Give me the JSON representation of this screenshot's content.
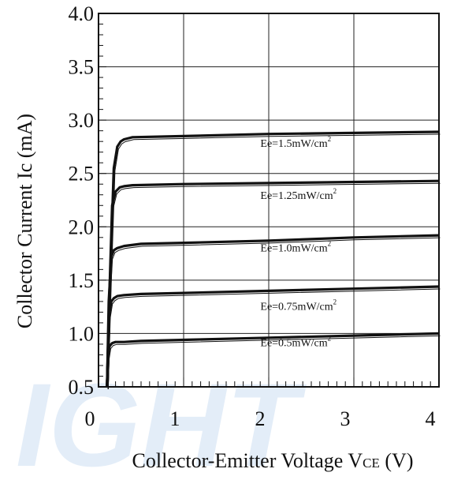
{
  "chart_data": {
    "type": "line",
    "title": "",
    "xlabel": "Collector-Emitter Voltage V",
    "xlabel_sub": "CE",
    "xlabel_unit": " (V)",
    "ylabel": "Collector Current Ic (mA)",
    "xlim": [
      0,
      4
    ],
    "ylim": [
      0.5,
      4.0
    ],
    "x_ticks": [
      "0",
      "1",
      "2",
      "3",
      "4"
    ],
    "y_ticks": [
      "0.5",
      "1.0",
      "1.5",
      "2.0",
      "2.5",
      "3.0",
      "3.5",
      "4.0"
    ],
    "grid": true,
    "series": [
      {
        "name": "Ee=1.5mW/cm2",
        "label_main": "Ee=1.5mW/cm",
        "label_sup": "2",
        "label_at": [
          2.55,
          2.75
        ],
        "x": [
          0.1,
          0.14,
          0.18,
          0.22,
          0.26,
          0.3,
          0.4,
          1.0,
          2.0,
          3.0,
          4.0
        ],
        "y": [
          0.5,
          1.6,
          2.55,
          2.75,
          2.8,
          2.82,
          2.84,
          2.85,
          2.87,
          2.88,
          2.89
        ]
      },
      {
        "name": "Ee=1.25mW/cm2",
        "label_main": "Ee=1.25mW/cm",
        "label_sup": "2",
        "label_at": [
          2.55,
          2.26
        ],
        "x": [
          0.1,
          0.13,
          0.16,
          0.2,
          0.25,
          0.3,
          0.4,
          1.0,
          2.0,
          3.0,
          4.0
        ],
        "y": [
          0.5,
          1.4,
          2.2,
          2.33,
          2.37,
          2.38,
          2.39,
          2.4,
          2.41,
          2.42,
          2.43
        ]
      },
      {
        "name": "Ee=1.0mW/cm2",
        "label_main": "Ee=1.0mW/cm",
        "label_sup": "2",
        "label_at": [
          2.55,
          1.77
        ],
        "x": [
          0.1,
          0.12,
          0.15,
          0.18,
          0.22,
          0.3,
          0.5,
          1.0,
          2.0,
          3.0,
          4.0
        ],
        "y": [
          0.5,
          1.3,
          1.72,
          1.78,
          1.8,
          1.82,
          1.84,
          1.85,
          1.87,
          1.9,
          1.92
        ]
      },
      {
        "name": "Ee=0.75mW/cm2",
        "label_main": "Ee=0.75mW/cm",
        "label_sup": "2",
        "label_at": [
          2.55,
          1.22
        ],
        "x": [
          0.1,
          0.12,
          0.15,
          0.18,
          0.22,
          0.3,
          0.5,
          1.0,
          2.0,
          3.0,
          4.0
        ],
        "y": [
          0.5,
          1.15,
          1.3,
          1.33,
          1.35,
          1.36,
          1.37,
          1.38,
          1.4,
          1.42,
          1.44
        ]
      },
      {
        "name": "Ee=0.5mW/cm2",
        "label_main": "Ee=0.5mW/cm",
        "label_sup": "2",
        "label_at": [
          2.55,
          0.88
        ],
        "x": [
          0.1,
          0.11,
          0.13,
          0.16,
          0.2,
          0.3,
          0.5,
          1.0,
          2.0,
          3.0,
          4.0
        ],
        "y": [
          0.5,
          0.78,
          0.88,
          0.91,
          0.92,
          0.92,
          0.93,
          0.94,
          0.96,
          0.98,
          1.0
        ]
      }
    ]
  },
  "colors": {
    "axis": "#111111",
    "grid": "#222222",
    "curve": "#111111",
    "watermark": "#e3edf8"
  }
}
